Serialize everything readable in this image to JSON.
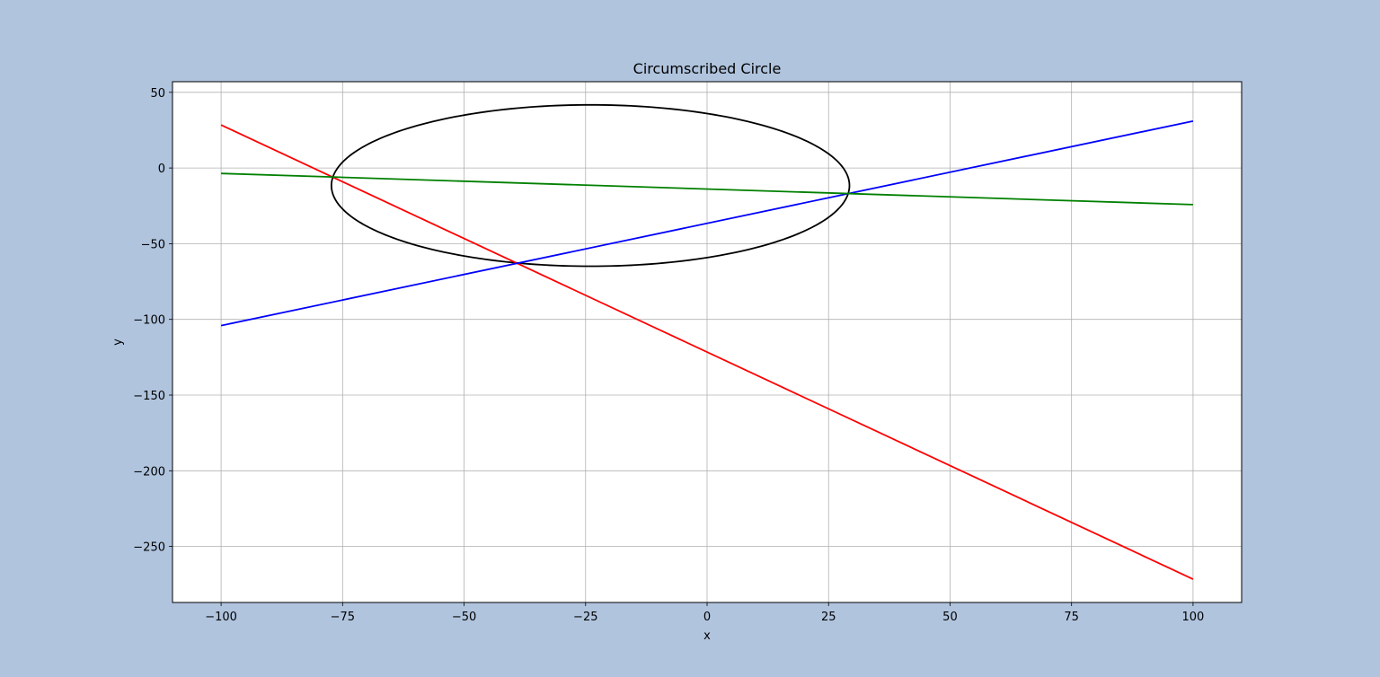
{
  "colors": {
    "figure_bg": "#b0c4de",
    "axes_bg": "#ffffff",
    "grid": "#b0b0b0"
  },
  "chart_data": {
    "type": "line",
    "title": "Circumscribed Circle",
    "xlabel": "x",
    "ylabel": "y",
    "xlim": [
      -110,
      110
    ],
    "ylim": [
      -287,
      57
    ],
    "grid": true,
    "xticks": [
      -100,
      -75,
      -50,
      -25,
      0,
      25,
      50,
      75,
      100
    ],
    "yticks": [
      50,
      0,
      -50,
      -100,
      -150,
      -200,
      -250
    ],
    "xtick_labels": [
      "−100",
      "−75",
      "−50",
      "−25",
      "0",
      "25",
      "50",
      "75",
      "100"
    ],
    "ytick_labels": [
      "50",
      "0",
      "−50",
      "−100",
      "−150",
      "−200",
      "−250"
    ],
    "series": [
      {
        "color": "#ff0000",
        "x": [
          -100,
          100
        ],
        "y": [
          28.4,
          -271.6
        ]
      },
      {
        "color": "#0000ff",
        "x": [
          -100,
          100
        ],
        "y": [
          -104.1,
          31.0
        ]
      },
      {
        "color": "#008000",
        "x": [
          -100,
          100
        ],
        "y": [
          -3.6,
          -24.2
        ]
      }
    ],
    "circle": {
      "color": "#000000",
      "center": [
        -24.0,
        -11.6
      ],
      "radius": 53.3
    }
  }
}
